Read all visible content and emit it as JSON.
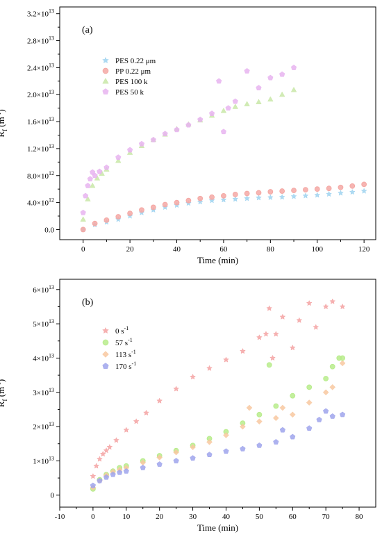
{
  "chart_data": [
    {
      "type": "scatter",
      "panel_label": "(a)",
      "xlabel": "Time (min)",
      "ylabel": "Rf (m-1)",
      "xlim": [
        -10,
        125
      ],
      "ylim": [
        -1500000000000.0,
        33000000000000.0
      ],
      "x_ticks": [
        0,
        20,
        40,
        60,
        80,
        100,
        120
      ],
      "y_ticks": [
        {
          "value": 0,
          "mantissa": "0.0",
          "exp": ""
        },
        {
          "value": 4000000000000.0,
          "mantissa": "4.0×10",
          "exp": "12"
        },
        {
          "value": 8000000000000.0,
          "mantissa": "8.0×10",
          "exp": "12"
        },
        {
          "value": 12000000000000.0,
          "mantissa": "1.2×10",
          "exp": "13"
        },
        {
          "value": 16000000000000.0,
          "mantissa": "1.6×10",
          "exp": "13"
        },
        {
          "value": 20000000000000.0,
          "mantissa": "2.0×10",
          "exp": "13"
        },
        {
          "value": 24000000000000.0,
          "mantissa": "2.4×10",
          "exp": "13"
        },
        {
          "value": 28000000000000.0,
          "mantissa": "2.8×10",
          "exp": "13"
        },
        {
          "value": 32000000000000.0,
          "mantissa": "3.2×10",
          "exp": "13"
        }
      ],
      "legend_position": "top-left",
      "grid": false,
      "series": [
        {
          "name": "PES 0.22 μm",
          "color": "#9fd3f0",
          "marker": "star",
          "x": [
            0,
            5,
            10,
            15,
            20,
            25,
            30,
            35,
            40,
            45,
            50,
            55,
            60,
            65,
            70,
            75,
            80,
            85,
            90,
            95,
            100,
            105,
            110,
            115,
            120
          ],
          "y": [
            0.0,
            700000000000.0,
            1100000000000.0,
            1500000000000.0,
            2000000000000.0,
            2500000000000.0,
            2900000000000.0,
            3300000000000.0,
            3600000000000.0,
            3900000000000.0,
            4100000000000.0,
            4300000000000.0,
            4400000000000.0,
            4500000000000.0,
            4600000000000.0,
            4700000000000.0,
            4750000000000.0,
            4800000000000.0,
            4900000000000.0,
            5000000000000.0,
            5100000000000.0,
            5250000000000.0,
            5400000000000.0,
            5550000000000.0,
            5700000000000.0
          ]
        },
        {
          "name": "PP 0.22 μm",
          "color": "#f4a8a4",
          "marker": "circle",
          "x": [
            0,
            5,
            10,
            15,
            20,
            25,
            30,
            35,
            40,
            45,
            50,
            55,
            60,
            65,
            70,
            75,
            80,
            85,
            90,
            95,
            100,
            105,
            110,
            115,
            120
          ],
          "y": [
            0.0,
            900000000000.0,
            1400000000000.0,
            1900000000000.0,
            2400000000000.0,
            2900000000000.0,
            3300000000000.0,
            3700000000000.0,
            4000000000000.0,
            4300000000000.0,
            4600000000000.0,
            4800000000000.0,
            5000000000000.0,
            5200000000000.0,
            5350000000000.0,
            5450000000000.0,
            5600000000000.0,
            5700000000000.0,
            5800000000000.0,
            5900000000000.0,
            6000000000000.0,
            6100000000000.0,
            6250000000000.0,
            6450000000000.0,
            6700000000000.0
          ]
        },
        {
          "name": "PES 100 k",
          "color": "#c9e8a8",
          "marker": "triangle",
          "x": [
            0,
            2,
            4,
            6,
            8,
            10,
            15,
            20,
            25,
            30,
            35,
            40,
            45,
            50,
            55,
            60,
            65,
            70,
            75,
            80,
            85,
            90
          ],
          "y": [
            1500000000000.0,
            4500000000000.0,
            6500000000000.0,
            7600000000000.0,
            8300000000000.0,
            8900000000000.0,
            10200000000000.0,
            11400000000000.0,
            12400000000000.0,
            13300000000000.0,
            14100000000000.0,
            14900000000000.0,
            15600000000000.0,
            16200000000000.0,
            16900000000000.0,
            17600000000000.0,
            18200000000000.0,
            18600000000000.0,
            18900000000000.0,
            19300000000000.0,
            20000000000000.0,
            20700000000000.0
          ]
        },
        {
          "name": "PES 50 k",
          "color": "#e8b4f0",
          "marker": "pentagon",
          "x": [
            0,
            1,
            2,
            3,
            4,
            5,
            7,
            10,
            15,
            20,
            25,
            30,
            35,
            40,
            45,
            50,
            55,
            58,
            60,
            62,
            65,
            70,
            75,
            80,
            85,
            90
          ],
          "y": [
            2500000000000.0,
            5000000000000.0,
            6500000000000.0,
            7500000000000.0,
            8500000000000.0,
            8000000000000.0,
            8600000000000.0,
            9200000000000.0,
            10700000000000.0,
            11800000000000.0,
            12700000000000.0,
            13300000000000.0,
            14200000000000.0,
            14800000000000.0,
            15500000000000.0,
            16300000000000.0,
            17200000000000.0,
            22000000000000.0,
            14500000000000.0,
            18000000000000.0,
            19000000000000.0,
            23500000000000.0,
            21000000000000.0,
            22500000000000.0,
            23000000000000.0,
            24000000000000.0
          ]
        }
      ]
    },
    {
      "type": "scatter",
      "panel_label": "(b)",
      "xlabel": "Time (min)",
      "ylabel": "Rf (m-1)",
      "xlim": [
        -10,
        85
      ],
      "ylim": [
        -3500000000000.0,
        63000000000000.0
      ],
      "x_ticks": [
        -10,
        0,
        10,
        20,
        30,
        40,
        50,
        60,
        70,
        80
      ],
      "y_ticks": [
        {
          "value": 0,
          "mantissa": "0",
          "exp": ""
        },
        {
          "value": 10000000000000.0,
          "mantissa": "1×10",
          "exp": "13"
        },
        {
          "value": 20000000000000.0,
          "mantissa": "2×10",
          "exp": "13"
        },
        {
          "value": 30000000000000.0,
          "mantissa": "3×10",
          "exp": "13"
        },
        {
          "value": 40000000000000.0,
          "mantissa": "4×10",
          "exp": "13"
        },
        {
          "value": 50000000000000.0,
          "mantissa": "5×10",
          "exp": "13"
        },
        {
          "value": 60000000000000.0,
          "mantissa": "6×10",
          "exp": "13"
        }
      ],
      "legend_position": "top-left",
      "grid": false,
      "series": [
        {
          "name": "0 s-1",
          "color": "#f4a3a3",
          "marker": "star",
          "x": [
            0,
            1,
            2,
            3,
            4,
            5,
            7,
            10,
            13,
            16,
            20,
            25,
            30,
            35,
            40,
            45,
            50,
            52,
            53,
            54,
            55,
            57,
            60,
            62,
            65,
            67,
            70,
            72,
            75
          ],
          "y": [
            5500000000000.0,
            8500000000000.0,
            10500000000000.0,
            12000000000000.0,
            13000000000000.0,
            14000000000000.0,
            16000000000000.0,
            19000000000000.0,
            21500000000000.0,
            24000000000000.0,
            27500000000000.0,
            31000000000000.0,
            34500000000000.0,
            37000000000000.0,
            39500000000000.0,
            42000000000000.0,
            46000000000000.0,
            47000000000000.0,
            54500000000000.0,
            40000000000000.0,
            47000000000000.0,
            52000000000000.0,
            43000000000000.0,
            51000000000000.0,
            56000000000000.0,
            49000000000000.0,
            55000000000000.0,
            56500000000000.0,
            55000000000000.0
          ]
        },
        {
          "name": "57 s-1",
          "color": "#b8ec8c",
          "marker": "circle",
          "x": [
            0,
            2,
            4,
            6,
            8,
            10,
            15,
            20,
            25,
            30,
            35,
            40,
            45,
            50,
            53,
            55,
            60,
            65,
            70,
            72,
            74,
            75
          ],
          "y": [
            1800000000000.0,
            4500000000000.0,
            6000000000000.0,
            7000000000000.0,
            8000000000000.0,
            8500000000000.0,
            10000000000000.0,
            11500000000000.0,
            13000000000000.0,
            14500000000000.0,
            16500000000000.0,
            18500000000000.0,
            21000000000000.0,
            23500000000000.0,
            38000000000000.0,
            26000000000000.0,
            29000000000000.0,
            31500000000000.0,
            34000000000000.0,
            37500000000000.0,
            40000000000000.0,
            40000000000000.0
          ]
        },
        {
          "name": "113 s-1",
          "color": "#f8c8a0",
          "marker": "diamond",
          "x": [
            0,
            2,
            4,
            6,
            8,
            10,
            15,
            20,
            25,
            30,
            35,
            40,
            45,
            47,
            50,
            55,
            57,
            60,
            65,
            70,
            72,
            75
          ],
          "y": [
            2200000000000.0,
            4200000000000.0,
            5800000000000.0,
            6800000000000.0,
            7400000000000.0,
            8000000000000.0,
            9500000000000.0,
            11000000000000.0,
            12500000000000.0,
            14000000000000.0,
            15500000000000.0,
            17500000000000.0,
            20000000000000.0,
            25500000000000.0,
            21500000000000.0,
            22500000000000.0,
            25500000000000.0,
            23500000000000.0,
            27000000000000.0,
            30000000000000.0,
            31500000000000.0,
            38500000000000.0
          ]
        },
        {
          "name": "170 s-1",
          "color": "#9fa4ec",
          "marker": "pentagon",
          "x": [
            0,
            2,
            4,
            6,
            8,
            10,
            15,
            20,
            25,
            30,
            35,
            40,
            45,
            50,
            55,
            57,
            60,
            65,
            68,
            70,
            72,
            75
          ],
          "y": [
            2800000000000.0,
            4200000000000.0,
            5200000000000.0,
            6000000000000.0,
            6600000000000.0,
            7000000000000.0,
            8000000000000.0,
            9000000000000.0,
            10000000000000.0,
            10800000000000.0,
            11800000000000.0,
            12800000000000.0,
            13500000000000.0,
            14500000000000.0,
            15500000000000.0,
            19000000000000.0,
            17000000000000.0,
            19500000000000.0,
            22000000000000.0,
            24500000000000.0,
            23000000000000.0,
            23500000000000.0
          ]
        }
      ]
    }
  ]
}
